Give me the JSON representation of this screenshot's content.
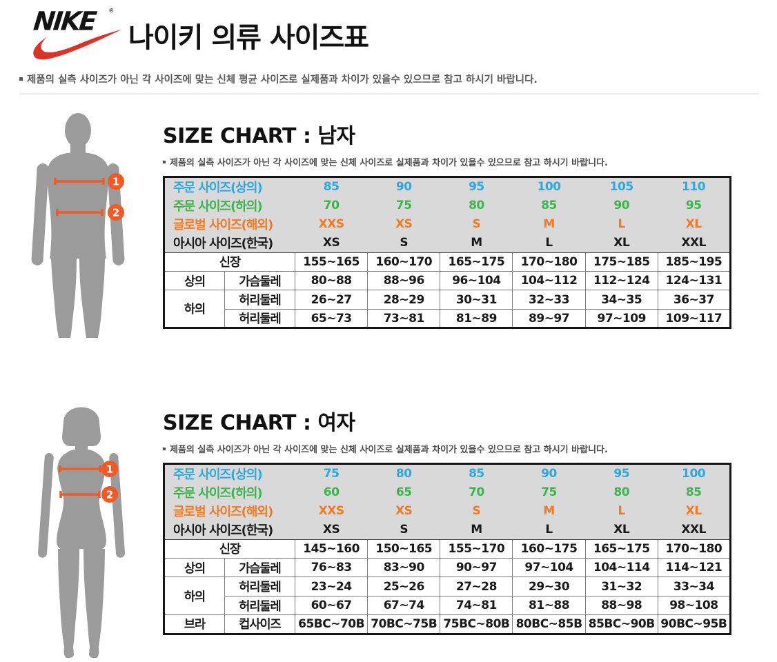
{
  "logo": {
    "brand": "NIKE",
    "reg": "®"
  },
  "page": {
    "title": "나이키 의류 사이즈표",
    "top_note": "제품의 실측 사이즈가 아닌 각 사이즈에 맞는 신체 평균 사이즈로 실제품과 차이가 있을수 있으므로 참고 하시기 바랍니다."
  },
  "figures": {
    "badge1": "1",
    "badge2": "2"
  },
  "colors": {
    "order_top": "#2BA8E0",
    "order_bottom": "#3BB54A",
    "global": "#F4791F",
    "asia": "#1A1A1A",
    "accent": "#F15A24",
    "swoosh_red": "#DD3327",
    "silhouette": "#9B9B9B",
    "header_bg": "#D9D9D9"
  },
  "sections": [
    {
      "id": "men",
      "title": "SIZE CHART : 남자",
      "note": "제품의 실측 사이즈가 아닌 각 사이즈에 맞는 신체 사이즈로 실제품과 차이가 있을수 있으므로 참고 하시기 바랍니다.",
      "header_rows": [
        {
          "label": "주문 사이즈(상의)",
          "color": "order_top",
          "values": [
            "85",
            "90",
            "95",
            "100",
            "105",
            "110"
          ]
        },
        {
          "label": "주문 사이즈(하의)",
          "color": "order_bottom",
          "values": [
            "70",
            "75",
            "80",
            "85",
            "90",
            "95"
          ]
        },
        {
          "label": "글로벌 사이즈(해외)",
          "color": "global",
          "values": [
            "XXS",
            "XS",
            "S",
            "M",
            "L",
            "XL"
          ]
        },
        {
          "label": "아시아 사이즈(한국)",
          "color": "asia",
          "values": [
            "XS",
            "S",
            "M",
            "L",
            "XL",
            "XXL"
          ]
        }
      ],
      "body_rows": [
        {
          "label": "신장",
          "values": [
            "155~165",
            "160~170",
            "165~175",
            "170~180",
            "175~185",
            "185~195"
          ]
        },
        {
          "group": "상의",
          "rowspan": 1,
          "sub": "가슴둘레",
          "values": [
            "80~88",
            "88~96",
            "96~104",
            "104~112",
            "112~124",
            "124~131"
          ]
        },
        {
          "group": "하의",
          "rowspan": 2,
          "sub": "허리둘레",
          "values": [
            "26~27",
            "28~29",
            "30~31",
            "32~33",
            "34~35",
            "36~37"
          ]
        },
        {
          "sub": "허리둘레",
          "values": [
            "65~73",
            "73~81",
            "81~89",
            "89~97",
            "97~109",
            "109~117"
          ]
        }
      ]
    },
    {
      "id": "women",
      "title": "SIZE CHART : 여자",
      "note": "제품의 실측 사이즈가 아닌 각 사이즈에 맞는 신체 사이즈로 실제품과 차이가 있을수 있으므로 참고 하시기 바랍니다.",
      "header_rows": [
        {
          "label": "주문 사이즈(상의)",
          "color": "order_top",
          "values": [
            "75",
            "80",
            "85",
            "90",
            "95",
            "100"
          ]
        },
        {
          "label": "주문 사이즈(하의)",
          "color": "order_bottom",
          "values": [
            "60",
            "65",
            "70",
            "75",
            "80",
            "85"
          ]
        },
        {
          "label": "글로벌 사이즈(해외)",
          "color": "global",
          "values": [
            "XXS",
            "XS",
            "S",
            "M",
            "L",
            "XL"
          ]
        },
        {
          "label": "아시아 사이즈(한국)",
          "color": "asia",
          "values": [
            "XS",
            "S",
            "M",
            "L",
            "XL",
            "XXL"
          ]
        }
      ],
      "body_rows": [
        {
          "label": "신장",
          "values": [
            "145~160",
            "150~165",
            "155~170",
            "160~175",
            "165~175",
            "170~180"
          ]
        },
        {
          "group": "상의",
          "rowspan": 1,
          "sub": "가슴둘레",
          "values": [
            "76~83",
            "83~90",
            "90~97",
            "97~104",
            "104~114",
            "114~121"
          ]
        },
        {
          "group": "하의",
          "rowspan": 2,
          "sub": "허리둘레",
          "values": [
            "23~24",
            "25~26",
            "27~28",
            "29~30",
            "31~32",
            "33~34"
          ]
        },
        {
          "sub": "허리둘레",
          "values": [
            "60~67",
            "67~74",
            "74~81",
            "81~88",
            "88~98",
            "98~108"
          ]
        },
        {
          "group": "브라",
          "rowspan": 1,
          "sub": "컵사이즈",
          "values": [
            "65BC~70B",
            "70BC~75B",
            "75BC~80B",
            "80BC~85B",
            "85BC~90B",
            "90BC~95B"
          ]
        }
      ]
    }
  ]
}
